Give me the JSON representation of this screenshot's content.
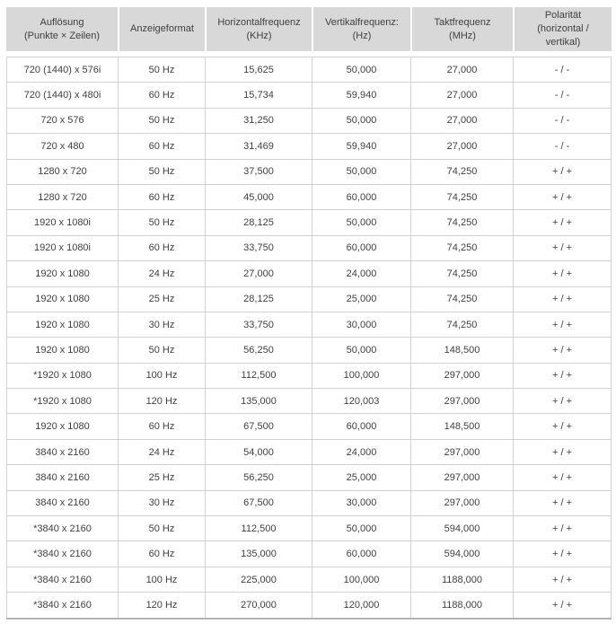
{
  "colors": {
    "page_bg": "#ffffff",
    "header_bg": "#d8d8d8",
    "text": "#3f3f3f",
    "grid_border": "#d1d1d1",
    "outer_bottom_border": "#b2b2b2"
  },
  "table": {
    "columns": [
      {
        "id": "resolution",
        "lines": [
          "Auflösung",
          "(Punkte × Zeilen)"
        ]
      },
      {
        "id": "display-format",
        "lines": [
          "Anzeigeformat"
        ]
      },
      {
        "id": "horizontal-frequency",
        "lines": [
          "Horizontalfrequenz",
          "(KHz)"
        ]
      },
      {
        "id": "vertical-frequency",
        "lines": [
          "Vertikalfrequenz:",
          "(Hz)"
        ]
      },
      {
        "id": "clock-frequency",
        "lines": [
          "Taktfrequenz",
          "(MHz)"
        ]
      },
      {
        "id": "polarity",
        "lines": [
          "Polarität",
          "(horizontal /",
          "vertikal)"
        ]
      }
    ],
    "rows": [
      [
        "720 (1440) x 576i",
        "50 Hz",
        "15,625",
        "50,000",
        "27,000",
        "- / -"
      ],
      [
        "720 (1440) x 480i",
        "60 Hz",
        "15,734",
        "59,940",
        "27,000",
        "- / -"
      ],
      [
        "720 x 576",
        "50 Hz",
        "31,250",
        "50,000",
        "27,000",
        "- / -"
      ],
      [
        "720 x 480",
        "60 Hz",
        "31,469",
        "59,940",
        "27,000",
        "- / -"
      ],
      [
        "1280 x 720",
        "50 Hz",
        "37,500",
        "50,000",
        "74,250",
        "+ / +"
      ],
      [
        "1280 x 720",
        "60 Hz",
        "45,000",
        "60,000",
        "74,250",
        "+ / +"
      ],
      [
        "1920 x 1080i",
        "50 Hz",
        "28,125",
        "50,000",
        "74,250",
        "+ / +"
      ],
      [
        "1920 x 1080i",
        "60 Hz",
        "33,750",
        "60,000",
        "74,250",
        "+ / +"
      ],
      [
        "1920 x 1080",
        "24 Hz",
        "27,000",
        "24,000",
        "74,250",
        "+ / +"
      ],
      [
        "1920 x 1080",
        "25 Hz",
        "28,125",
        "25,000",
        "74,250",
        "+ / +"
      ],
      [
        "1920 x 1080",
        "30 Hz",
        "33,750",
        "30,000",
        "74,250",
        "+ / +"
      ],
      [
        "1920 x 1080",
        "50 Hz",
        "56,250",
        "50,000",
        "148,500",
        "+ / +"
      ],
      [
        "*1920 x 1080",
        "100 Hz",
        "112,500",
        "100,000",
        "297,000",
        "+ / +"
      ],
      [
        "*1920 x 1080",
        "120 Hz",
        "135,000",
        "120,003",
        "297,000",
        "+ / +"
      ],
      [
        "1920 x 1080",
        "60 Hz",
        "67,500",
        "60,000",
        "148,500",
        "+ / +"
      ],
      [
        "3840 x 2160",
        "24 Hz",
        "54,000",
        "24,000",
        "297,000",
        "+ / +"
      ],
      [
        "3840 x 2160",
        "25 Hz",
        "56,250",
        "25,000",
        "297,000",
        "+ / +"
      ],
      [
        "3840 x 2160",
        "30 Hz",
        "67,500",
        "30,000",
        "297,000",
        "+ / +"
      ],
      [
        "*3840 x 2160",
        "50 Hz",
        "112,500",
        "50,000",
        "594,000",
        "+ / +"
      ],
      [
        "*3840 x 2160",
        "60 Hz",
        "135,000",
        "60,000",
        "594,000",
        "+ / +"
      ],
      [
        "*3840 x 2160",
        "100 Hz",
        "225,000",
        "100,000",
        "1188,000",
        "+ / +"
      ],
      [
        "*3840 x 2160",
        "120 Hz",
        "270,000",
        "120,000",
        "1188,000",
        "+ / +"
      ]
    ]
  }
}
